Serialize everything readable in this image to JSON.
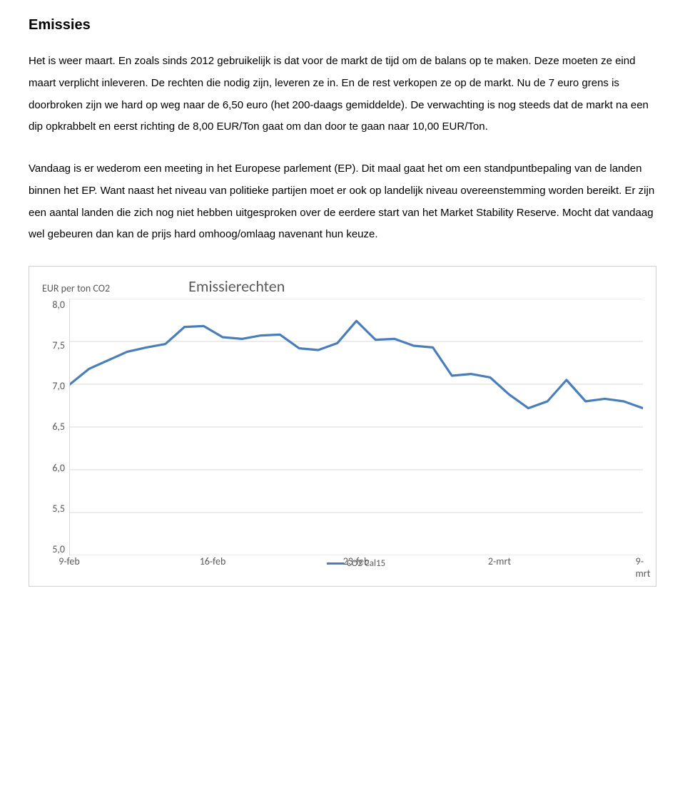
{
  "title": "Emissies",
  "paragraph1": "Het is weer maart. En zoals sinds 2012 gebruikelijk is dat voor de markt de tijd om de balans op te maken. Deze moeten ze eind maart verplicht inleveren. De rechten die nodig zijn, leveren ze in. En de rest verkopen ze op de markt. Nu de 7 euro grens is doorbroken zijn we hard op weg naar de 6,50 euro (het 200-daags gemiddelde). De verwachting is nog steeds dat de markt na een dip opkrabbelt en eerst richting de 8,00 EUR/Ton gaat om dan door te gaan naar 10,00 EUR/Ton.",
  "paragraph2": "Vandaag is er wederom een meeting in het Europese parlement (EP). Dit maal gaat het om een standpuntbepaling van de landen binnen het EP. Want naast het niveau van  politieke partijen moet er ook op landelijk niveau overeenstemming worden bereikt. Er zijn een aantal landen die zich nog niet hebben uitgesproken over de eerdere start van het Market Stability Reserve. Mocht dat vandaag wel gebeuren dan kan de prijs hard omhoog/omlaag navenant hun keuze.",
  "chart": {
    "type": "line",
    "title": "Emissierechten",
    "y_unit": "EUR per ton CO2",
    "y_ticks": [
      "8,0",
      "7,5",
      "7,0",
      "6,5",
      "6,0",
      "5,5",
      "5,0"
    ],
    "ylim_min": 5.0,
    "ylim_max": 8.0,
    "x_ticks": [
      {
        "label": "9-feb",
        "pos_pct": 0
      },
      {
        "label": "16-feb",
        "pos_pct": 25
      },
      {
        "label": "23-feb",
        "pos_pct": 50
      },
      {
        "label": "2-mrt",
        "pos_pct": 75
      },
      {
        "label": "9-mrt",
        "pos_pct": 100
      }
    ],
    "series_label": "CO2 Cal15",
    "line_color": "#4a7ebb",
    "line_width": 3.2,
    "grid_color": "#d9d9d9",
    "tick_font_color": "#595959",
    "background_color": "#ffffff",
    "values": [
      7.0,
      7.18,
      7.28,
      7.38,
      7.43,
      7.47,
      7.67,
      7.68,
      7.55,
      7.53,
      7.57,
      7.58,
      7.42,
      7.4,
      7.48,
      7.74,
      7.52,
      7.53,
      7.45,
      7.43,
      7.1,
      7.12,
      7.08,
      6.88,
      6.72,
      6.8,
      7.05,
      6.8,
      6.83,
      6.8,
      6.72
    ]
  }
}
